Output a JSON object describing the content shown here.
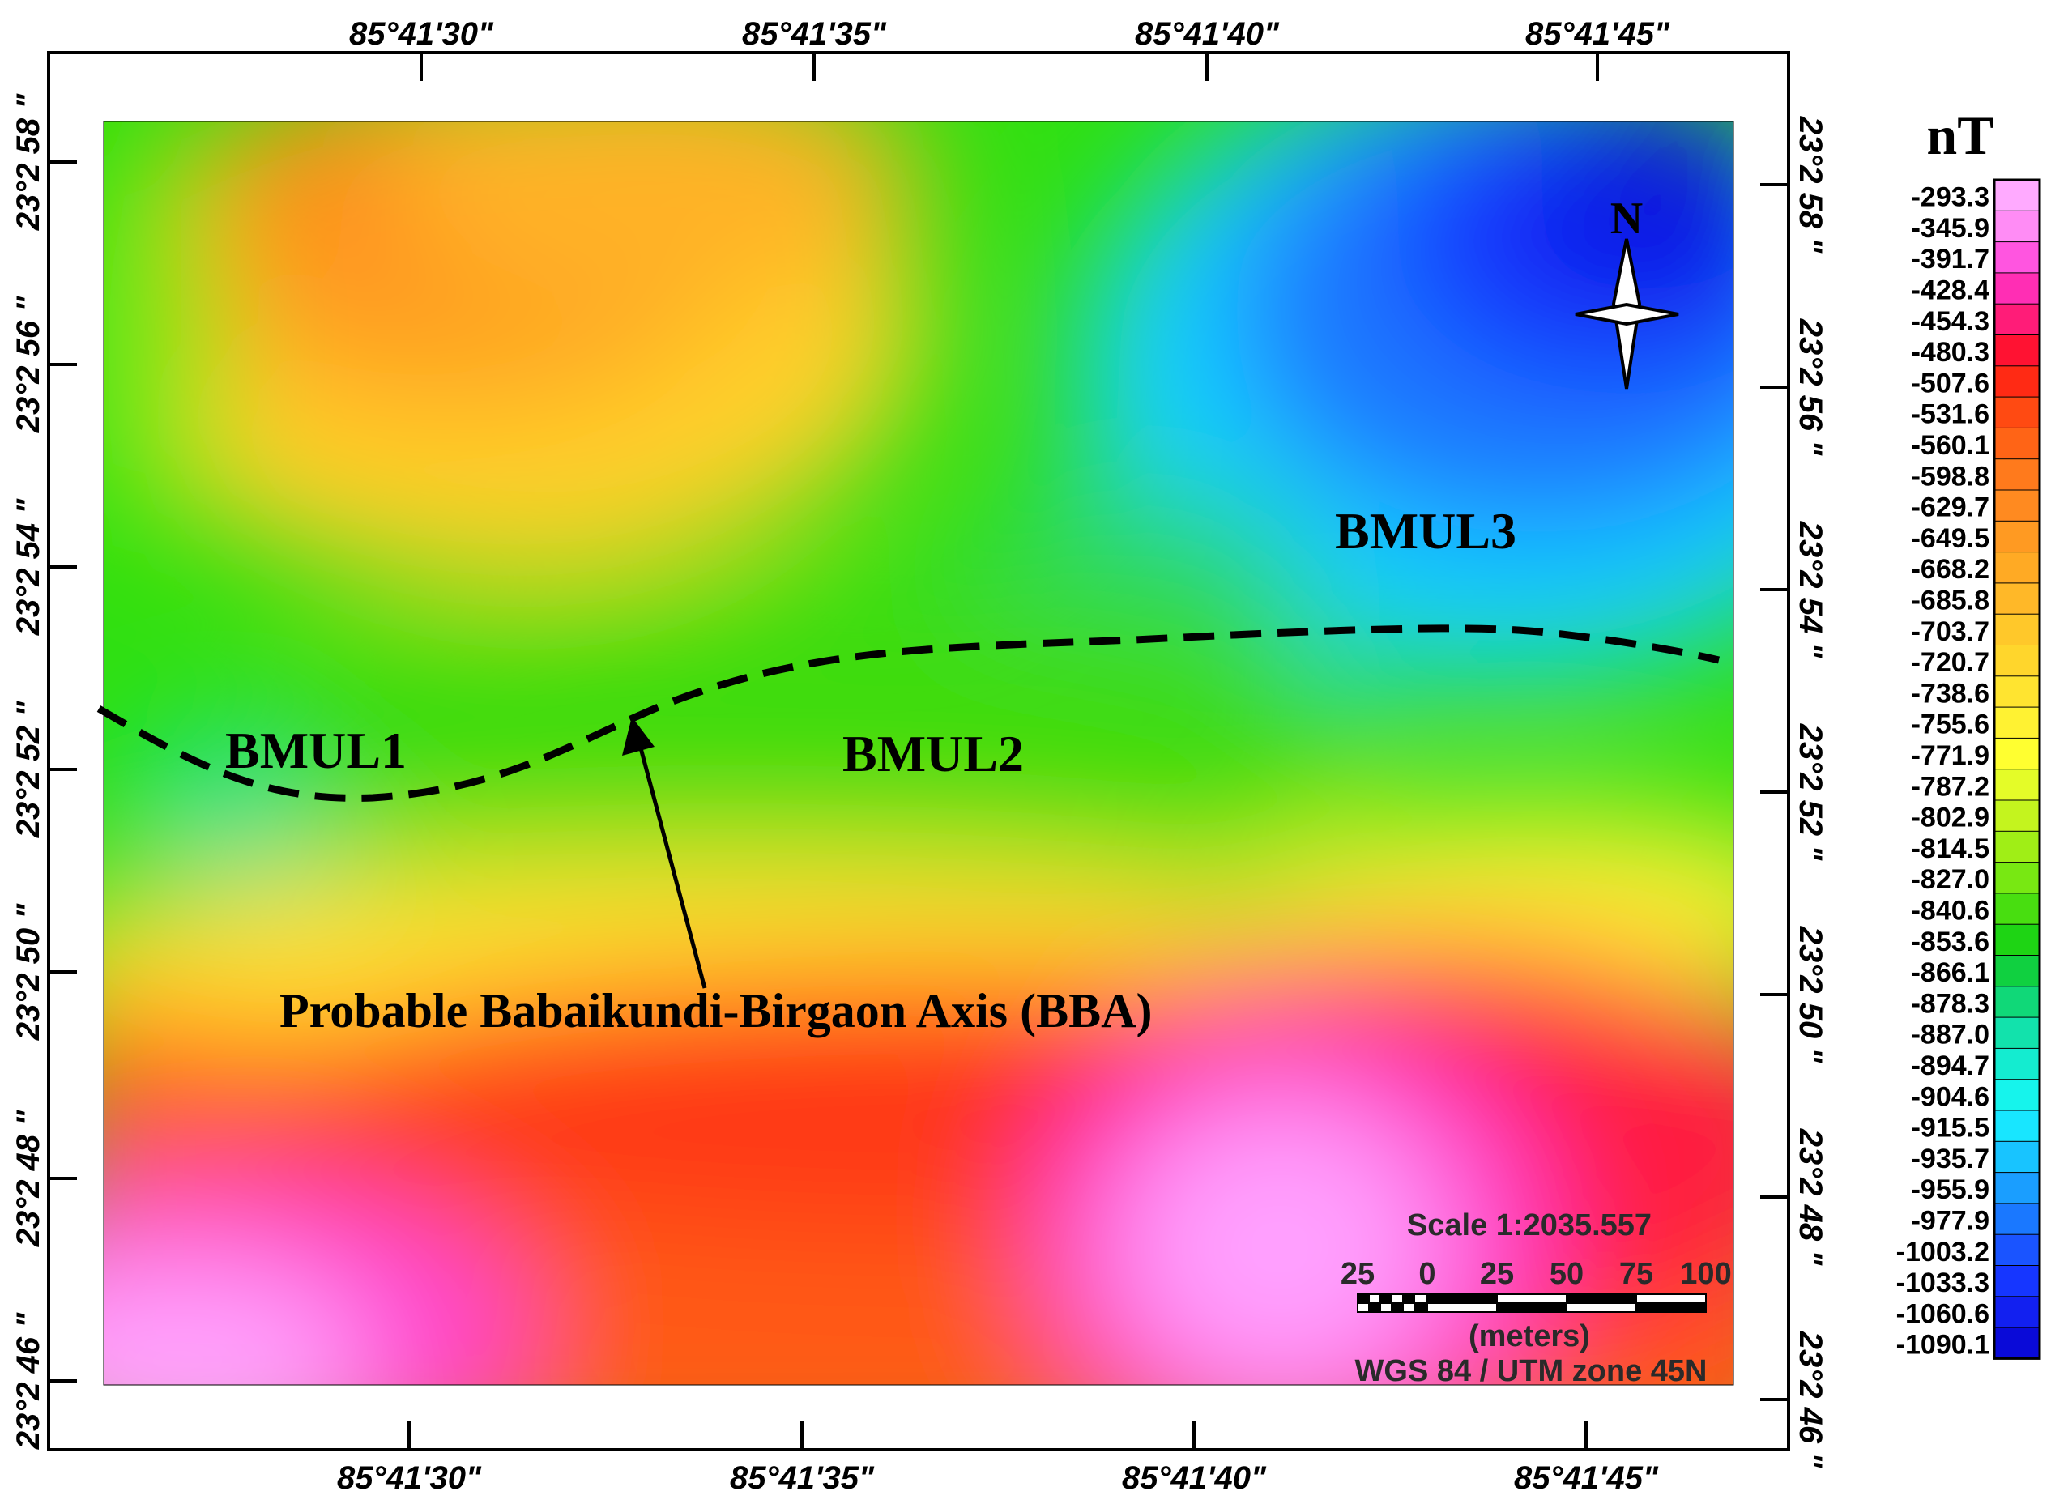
{
  "map": {
    "top_lon_labels": [
      "85°41'30\"",
      "85°41'35\"",
      "85°41'40\"",
      "85°41'45\""
    ],
    "bottom_lon_labels": [
      "85°41'30\"",
      "85°41'35\"",
      "85°41'40\"",
      "85°41'45\""
    ],
    "left_lat_labels": [
      "23°2 58 \"",
      "23°2 56 \"",
      "23°2 54 \"",
      "23°2 52 \"",
      "23°2 50 \"",
      "23°2 48 \"",
      "23°2 46 \""
    ],
    "right_lat_labels": [
      "23°2 58 \"",
      "23°2 56 \"",
      "23°2 54 \"",
      "23°2 52 \"",
      "23°2 50 \"",
      "23°2 48 \"",
      "23°2 46 \""
    ],
    "zones": [
      "BMUL1",
      "BMUL2",
      "BMUL3"
    ],
    "axis_annotation": "Probable Babaikundi-Birgaon Axis (BBA)",
    "north_label": "N"
  },
  "scale_bar": {
    "title": "Scale 1:2035.557",
    "ticks": [
      "25",
      "0",
      "25",
      "50",
      "75",
      "100"
    ],
    "units": "(meters)",
    "projection": "WGS 84 / UTM zone 45N"
  },
  "legend": {
    "unit": "nT",
    "values": [
      "-293.3",
      "-345.9",
      "-391.7",
      "-428.4",
      "-454.3",
      "-480.3",
      "-507.6",
      "-531.6",
      "-560.1",
      "-598.8",
      "-629.7",
      "-649.5",
      "-668.2",
      "-685.8",
      "-703.7",
      "-720.7",
      "-738.6",
      "-755.6",
      "-771.9",
      "-787.2",
      "-802.9",
      "-814.5",
      "-827.0",
      "-840.6",
      "-853.6",
      "-866.1",
      "-878.3",
      "-887.0",
      "-894.7",
      "-904.6",
      "-915.5",
      "-935.7",
      "-955.9",
      "-977.9",
      "-1003.2",
      "-1033.3",
      "-1060.6",
      "-1090.1"
    ],
    "colors": [
      "#ffaaff",
      "#ff8cf5",
      "#ff55e0",
      "#ff2eb4",
      "#ff1c78",
      "#ff1232",
      "#ff2a14",
      "#ff4a12",
      "#ff6416",
      "#ff7a1c",
      "#ff8a20",
      "#ff9a22",
      "#ffaa24",
      "#ffb828",
      "#ffc82a",
      "#ffd62c",
      "#ffe430",
      "#fff232",
      "#ffff30",
      "#e4fc28",
      "#c4f41e",
      "#a0ee16",
      "#78e812",
      "#48de10",
      "#1ed414",
      "#10d040",
      "#10d878",
      "#12e2ac",
      "#14ecd0",
      "#16f4ec",
      "#18e6ff",
      "#18c4ff",
      "#1a9eff",
      "#1a78ff",
      "#1a54ff",
      "#1636ff",
      "#1220f0",
      "#0a0ad8"
    ]
  }
}
